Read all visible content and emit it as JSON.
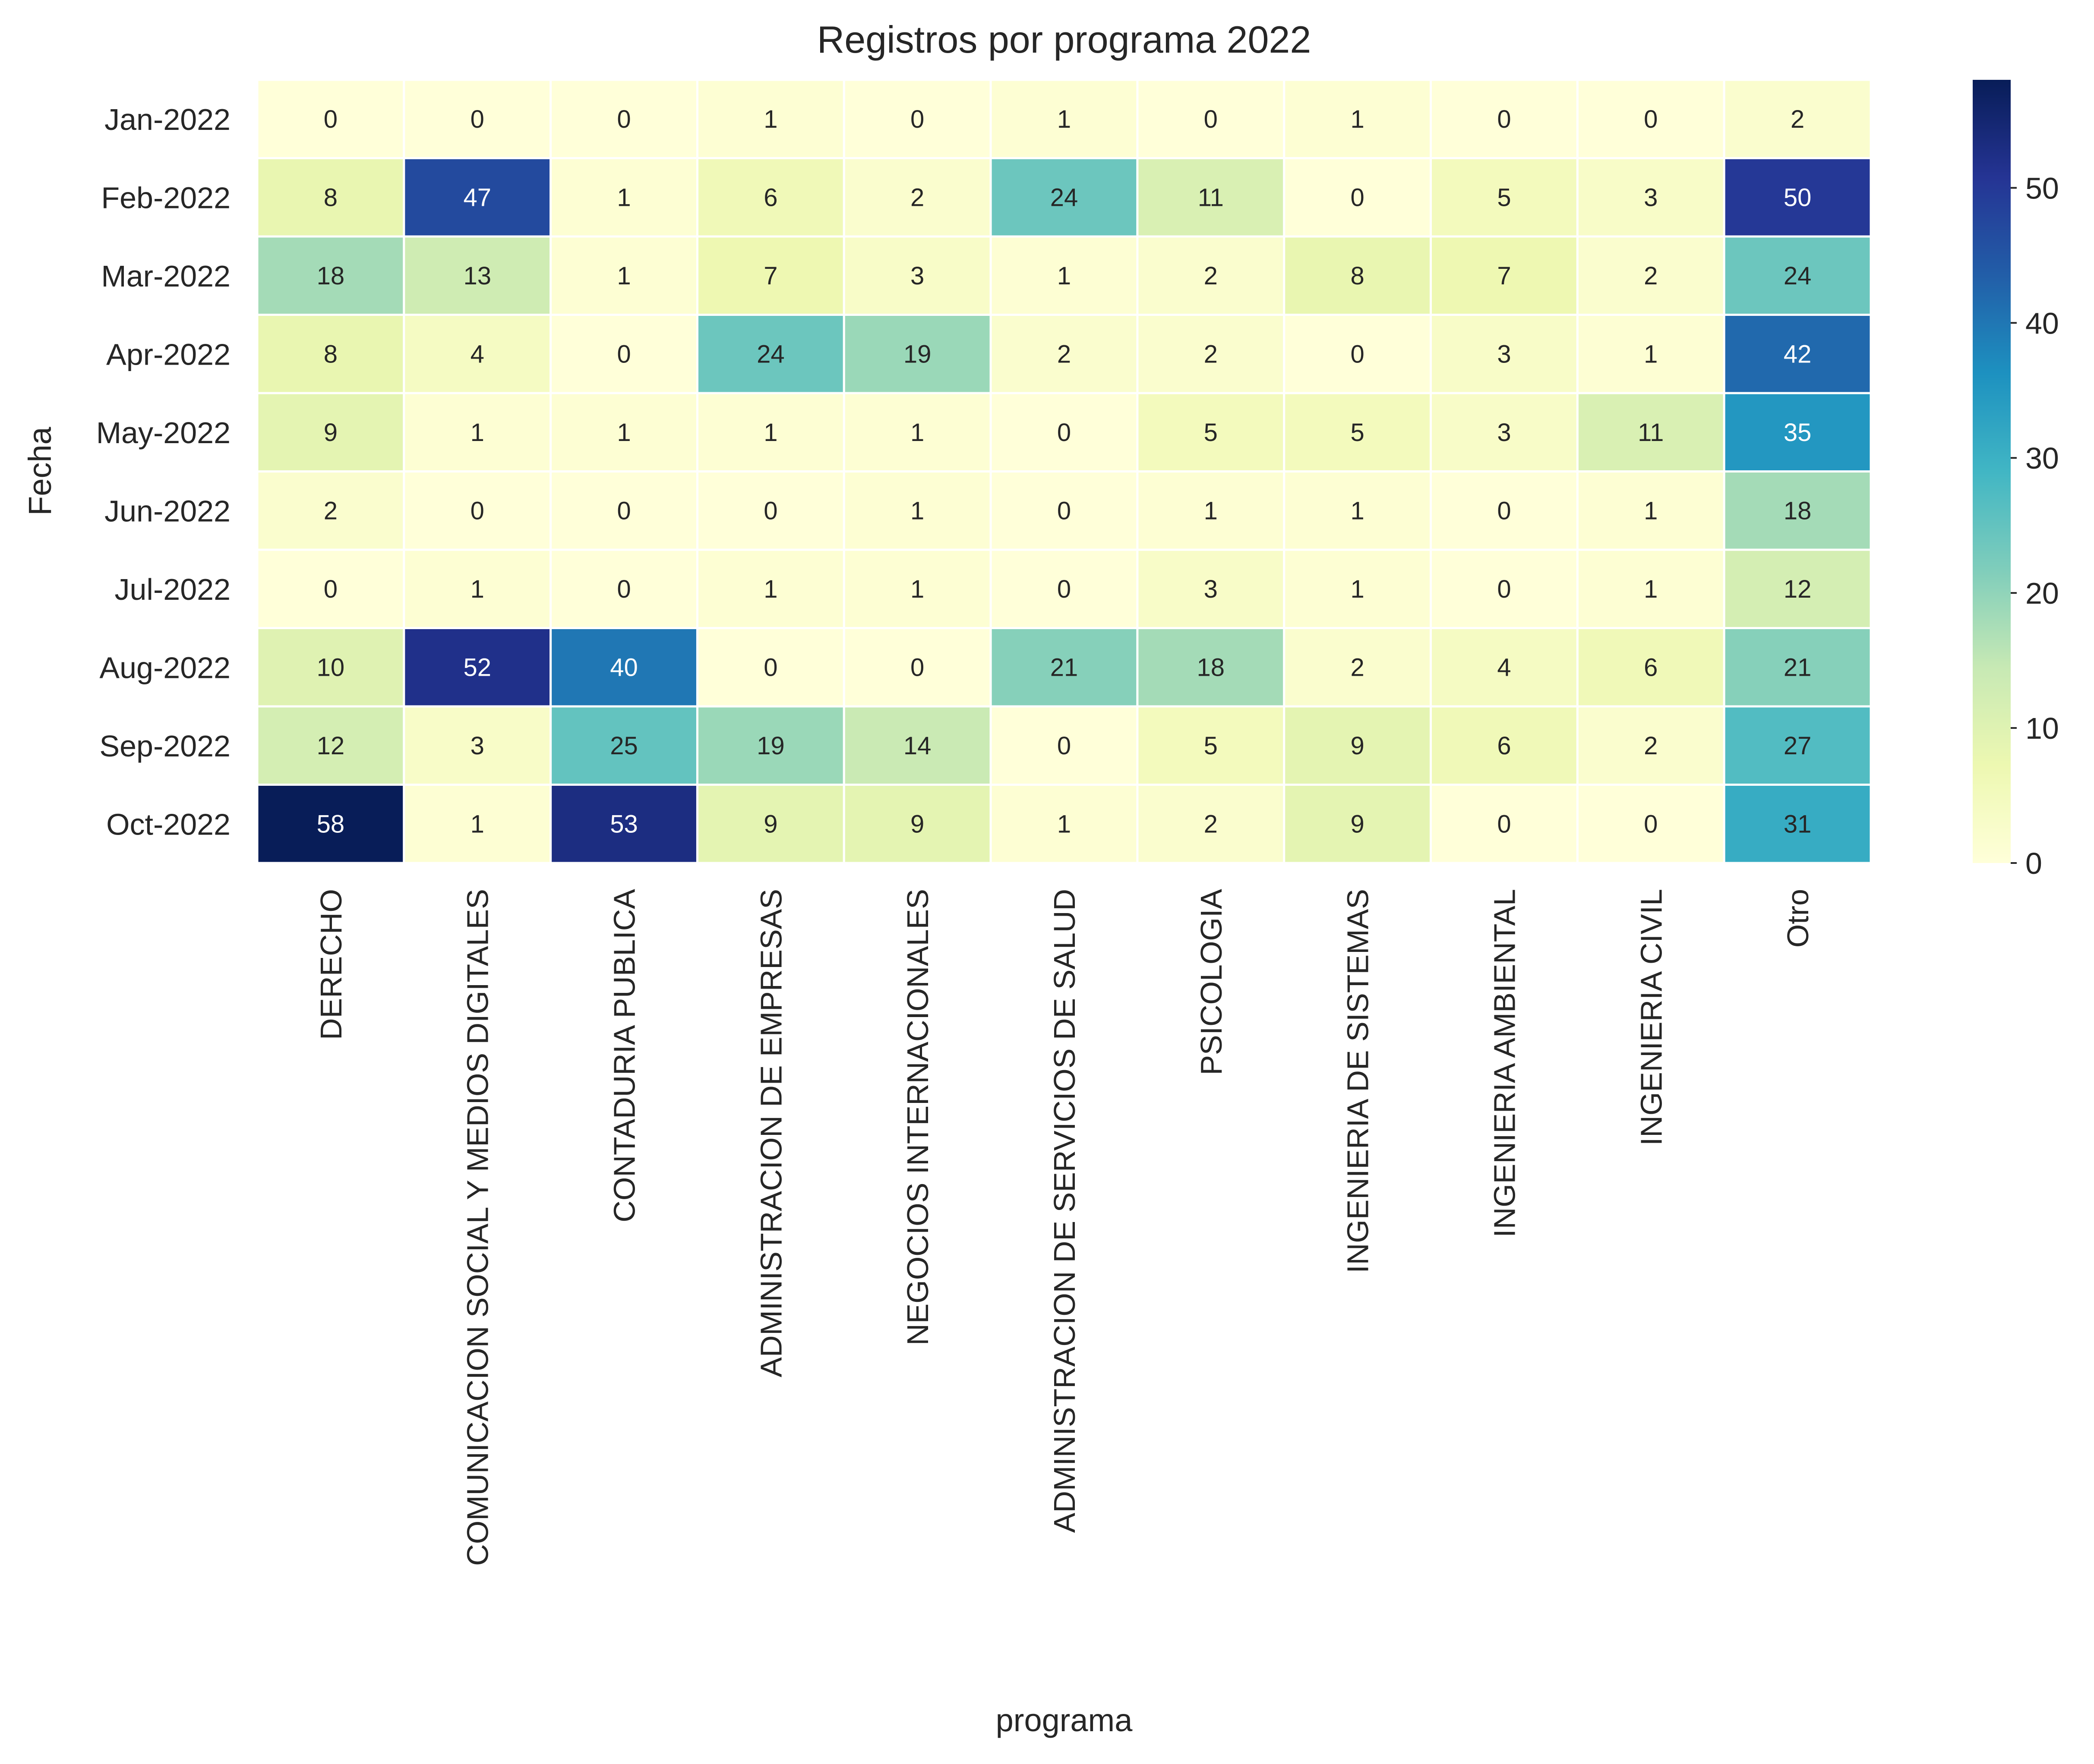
{
  "chart_data": {
    "type": "heatmap",
    "title": "Registros por programa 2022",
    "xlabel": "programa",
    "ylabel": "Fecha",
    "x_categories": [
      "DERECHO",
      "COMUNICACION SOCIAL Y MEDIOS DIGITALES",
      "CONTADURIA PUBLICA",
      "ADMINISTRACION DE EMPRESAS",
      "NEGOCIOS INTERNACIONALES",
      "ADMINISTRACION DE SERVICIOS DE SALUD",
      "PSICOLOGIA",
      "INGENIERIA DE SISTEMAS",
      "INGENIERIA AMBIENTAL",
      "INGENIERIA CIVIL",
      "Otro"
    ],
    "y_categories": [
      "Jan-2022",
      "Feb-2022",
      "Mar-2022",
      "Apr-2022",
      "May-2022",
      "Jun-2022",
      "Jul-2022",
      "Aug-2022",
      "Sep-2022",
      "Oct-2022"
    ],
    "values": [
      [
        0,
        0,
        0,
        1,
        0,
        1,
        0,
        1,
        0,
        0,
        2
      ],
      [
        8,
        47,
        1,
        6,
        2,
        24,
        11,
        0,
        5,
        3,
        50
      ],
      [
        18,
        13,
        1,
        7,
        3,
        1,
        2,
        8,
        7,
        2,
        24
      ],
      [
        8,
        4,
        0,
        24,
        19,
        2,
        2,
        0,
        3,
        1,
        42
      ],
      [
        9,
        1,
        1,
        1,
        1,
        0,
        5,
        5,
        3,
        11,
        35
      ],
      [
        2,
        0,
        0,
        0,
        1,
        0,
        1,
        1,
        0,
        1,
        18
      ],
      [
        0,
        1,
        0,
        1,
        1,
        0,
        3,
        1,
        0,
        1,
        12
      ],
      [
        10,
        52,
        40,
        0,
        0,
        21,
        18,
        2,
        4,
        6,
        21
      ],
      [
        12,
        3,
        25,
        19,
        14,
        0,
        5,
        9,
        6,
        2,
        27
      ],
      [
        58,
        1,
        53,
        9,
        9,
        1,
        2,
        9,
        0,
        0,
        31
      ]
    ],
    "vmin": 0,
    "vmax": 58,
    "colorbar_ticks": [
      0,
      10,
      20,
      30,
      40,
      50
    ],
    "colormap": "YlGnBu",
    "colormap_stops": [
      "#ffffd9",
      "#edf8b1",
      "#c7e9b4",
      "#7fcdbb",
      "#41b6c4",
      "#1d91c0",
      "#225ea8",
      "#253494",
      "#081d58"
    ],
    "grid": false
  }
}
